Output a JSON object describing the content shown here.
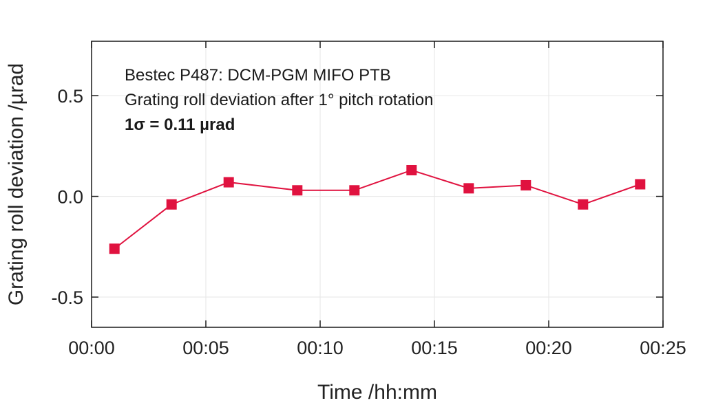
{
  "chart_data": {
    "type": "line",
    "title": "",
    "xlabel": "Time /hh:mm",
    "ylabel": "Grating roll deviation /µrad",
    "x_ticks": [
      "00:00",
      "00:05",
      "00:10",
      "00:15",
      "00:20",
      "00:25"
    ],
    "y_ticks": [
      "0.5",
      "0.0",
      "-0.5"
    ],
    "xlim": [
      "00:00",
      "00:25"
    ],
    "ylim": [
      -0.65,
      0.77
    ],
    "grid": true,
    "legend": "none",
    "series": [
      {
        "x": [
          "00:01",
          "00:03.5",
          "00:06",
          "00:09",
          "00:11.5",
          "00:14",
          "00:16.5",
          "00:19",
          "00:21.5",
          "00:24"
        ],
        "y": [
          -0.26,
          -0.04,
          0.07,
          0.03,
          0.03,
          0.13,
          0.04,
          0.055,
          -0.04,
          0.06
        ],
        "color": "#e0123f",
        "marker": "square"
      }
    ],
    "annotations": [
      "Bestec P487: DCM-PGM MIFO PTB",
      "Grating roll deviation after 1° pitch rotation",
      "1σ = 0.11 µrad"
    ]
  }
}
